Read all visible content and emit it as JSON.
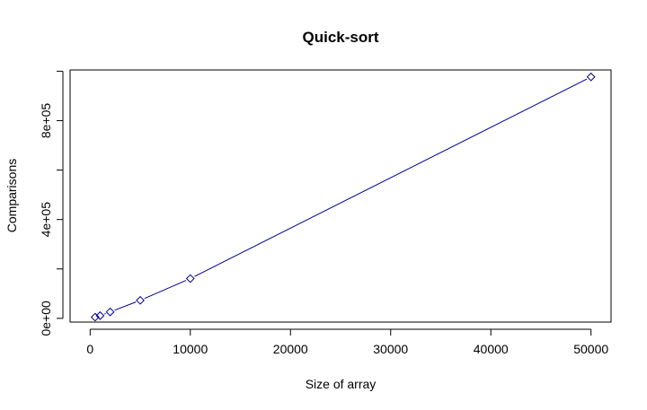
{
  "chart_data": {
    "type": "line",
    "title": "Quick-sort",
    "xlabel": "Size of array",
    "ylabel": "Comparisons",
    "xlim": [
      -2000,
      52000
    ],
    "ylim": [
      -15000,
      1005000
    ],
    "x_ticks": [
      0,
      10000,
      20000,
      30000,
      40000,
      50000
    ],
    "x_tick_labels": [
      "0",
      "10000",
      "20000",
      "30000",
      "40000",
      "50000"
    ],
    "y_ticks": [
      0,
      400000,
      800000
    ],
    "y_tick_labels": [
      "0e+00",
      "4e+05",
      "8e+05"
    ],
    "y_minor_ticks": [
      200000,
      600000,
      1000000
    ],
    "grid": false,
    "marker": "diamond",
    "series": [
      {
        "x": [
          500,
          1000,
          2000,
          5000,
          10000,
          50000
        ],
        "values": [
          5000,
          11000,
          26000,
          73000,
          161000,
          977000
        ],
        "color": "#00008b"
      }
    ]
  }
}
